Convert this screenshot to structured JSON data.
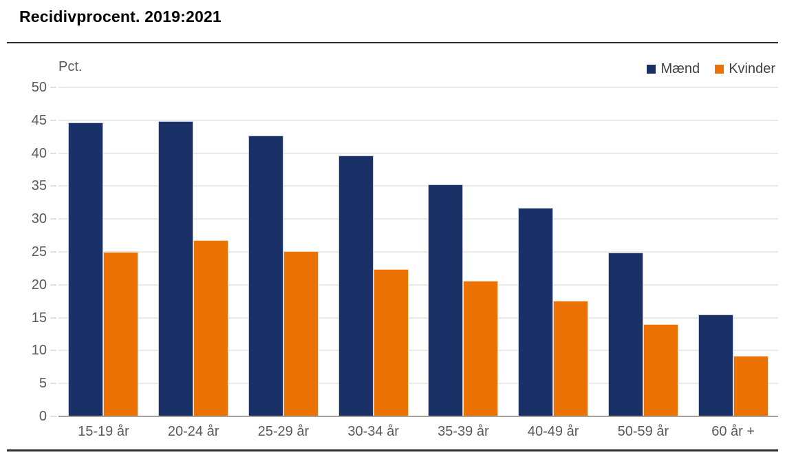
{
  "header": {
    "title": "Recidivprocent. 2019:2021"
  },
  "chart_data": {
    "type": "bar",
    "title": "Recidivprocent. 2019:2021",
    "xlabel": "",
    "ylabel": "Pct.",
    "ylim": [
      0,
      50
    ],
    "yticks": [
      0,
      5,
      10,
      15,
      20,
      25,
      30,
      35,
      40,
      45,
      50
    ],
    "grid": true,
    "legend_position": "top-right",
    "categories": [
      "15-19 år",
      "20-24 år",
      "25-29 år",
      "30-34 år",
      "35-39 år",
      "40-49 år",
      "50-59 år",
      "60 år +"
    ],
    "series": [
      {
        "name": "Mænd",
        "color": "#1a3167",
        "values": [
          44.7,
          44.9,
          42.7,
          39.6,
          35.3,
          31.7,
          24.9,
          15.5
        ]
      },
      {
        "name": "Kvinder",
        "color": "#ec7303",
        "values": [
          25.0,
          26.8,
          25.1,
          22.4,
          20.6,
          17.6,
          14.0,
          9.2
        ]
      }
    ],
    "colors": {
      "gridline": "#d9d5cc",
      "axis_line": "#a9a59d",
      "axis_text": "#595959",
      "legend_text": "#404040",
      "title_text": "#000000"
    }
  }
}
